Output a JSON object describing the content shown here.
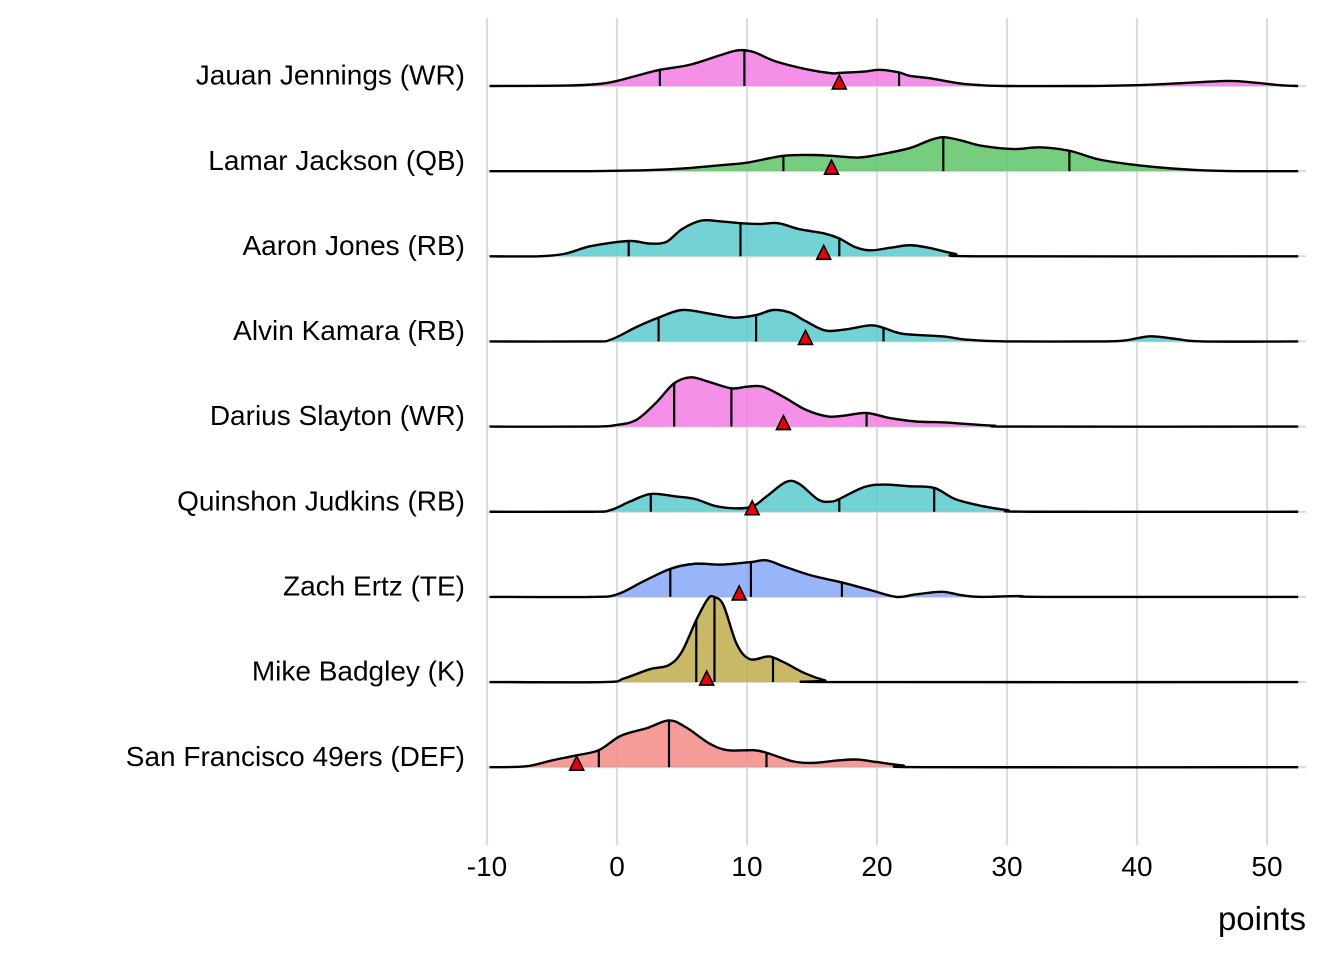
{
  "chart_data": {
    "type": "ridgeline",
    "title": "",
    "xlabel": "points",
    "ylabel": "",
    "xlim": [
      -10,
      52.5
    ],
    "x_ticks": [
      -10,
      0,
      10,
      20,
      30,
      40,
      50
    ],
    "x_tick_labels": [
      "-10",
      "0",
      "10",
      "20",
      "30",
      "40",
      "50"
    ],
    "grid": true,
    "legend": "none",
    "density_scale_note": "heights relative to tallest ridge peak (=1.0)",
    "colors": {
      "WR": "#f37de4",
      "QB": "#5ec466",
      "RB": "#5bcbcd",
      "TE": "#86a8f8",
      "K": "#bfab4e",
      "DEF": "#f48b86",
      "marker": "#e8000b",
      "outline": "#000000",
      "gridline": "#dcdcdc"
    },
    "series": [
      {
        "name": "Jauan Jennings (WR)",
        "position": "WR",
        "quantiles": [
          3.3,
          9.8,
          21.7
        ],
        "marker": 17.1,
        "density": [
          [
            -9.8,
            0
          ],
          [
            -4,
            0.005
          ],
          [
            -1.3,
            0.025
          ],
          [
            0,
            0.06
          ],
          [
            1.5,
            0.12
          ],
          [
            3.3,
            0.19
          ],
          [
            5.6,
            0.25
          ],
          [
            7.9,
            0.36
          ],
          [
            9.3,
            0.42
          ],
          [
            10.5,
            0.4
          ],
          [
            12.2,
            0.29
          ],
          [
            14.8,
            0.19
          ],
          [
            16.5,
            0.15
          ],
          [
            17.2,
            0.155
          ],
          [
            19,
            0.17
          ],
          [
            20.2,
            0.19
          ],
          [
            21.7,
            0.16
          ],
          [
            22.5,
            0.12
          ],
          [
            24.1,
            0.09
          ],
          [
            26.4,
            0.03
          ],
          [
            28,
            0.01
          ],
          [
            30,
            0.0
          ],
          [
            36,
            0.0
          ],
          [
            40,
            0.01
          ],
          [
            43,
            0.03
          ],
          [
            47,
            0.06
          ],
          [
            49,
            0.04
          ],
          [
            51,
            0.01
          ],
          [
            52.4,
            0
          ]
        ]
      },
      {
        "name": "Lamar Jackson (QB)",
        "position": "QB",
        "quantiles": [
          12.8,
          25.1,
          34.8
        ],
        "marker": 16.5,
        "density": [
          [
            -9.8,
            0
          ],
          [
            -2,
            0.0
          ],
          [
            2,
            0.01
          ],
          [
            5,
            0.03
          ],
          [
            8,
            0.07
          ],
          [
            10,
            0.1
          ],
          [
            12.8,
            0.18
          ],
          [
            15,
            0.19
          ],
          [
            16.5,
            0.18
          ],
          [
            18.5,
            0.16
          ],
          [
            20,
            0.19
          ],
          [
            22.5,
            0.27
          ],
          [
            24,
            0.36
          ],
          [
            25.1,
            0.4
          ],
          [
            26.5,
            0.36
          ],
          [
            28,
            0.3
          ],
          [
            30.5,
            0.26
          ],
          [
            32.5,
            0.28
          ],
          [
            34.8,
            0.24
          ],
          [
            37,
            0.14
          ],
          [
            39.5,
            0.08
          ],
          [
            42,
            0.04
          ],
          [
            45,
            0.01
          ],
          [
            48,
            0.0
          ],
          [
            52.4,
            0
          ]
        ]
      },
      {
        "name": "Aaron Jones (RB)",
        "position": "RB",
        "quantiles": [
          0.9,
          9.5,
          17.1
        ],
        "marker": 15.9,
        "density": [
          [
            -9.8,
            0
          ],
          [
            -6,
            0.0
          ],
          [
            -4,
            0.03
          ],
          [
            -2,
            0.12
          ],
          [
            0.9,
            0.18
          ],
          [
            2.5,
            0.15
          ],
          [
            3.8,
            0.17
          ],
          [
            5,
            0.32
          ],
          [
            6.5,
            0.42
          ],
          [
            8,
            0.41
          ],
          [
            9.5,
            0.39
          ],
          [
            11,
            0.38
          ],
          [
            12.4,
            0.39
          ],
          [
            14,
            0.32
          ],
          [
            15.9,
            0.27
          ],
          [
            17.1,
            0.21
          ],
          [
            18.3,
            0.11
          ],
          [
            19.5,
            0.07
          ],
          [
            21,
            0.1
          ],
          [
            22.5,
            0.13
          ],
          [
            24,
            0.1
          ],
          [
            26,
            0.03
          ],
          [
            28,
            0.0
          ],
          [
            52.4,
            0
          ]
        ]
      },
      {
        "name": "Alvin Kamara (RB)",
        "position": "RB",
        "quantiles": [
          3.2,
          10.7,
          20.5
        ],
        "marker": 14.5,
        "density": [
          [
            -9.8,
            0
          ],
          [
            -2,
            0.0
          ],
          [
            -0.5,
            0.02
          ],
          [
            1.5,
            0.17
          ],
          [
            3.2,
            0.28
          ],
          [
            5,
            0.37
          ],
          [
            7,
            0.33
          ],
          [
            9,
            0.28
          ],
          [
            10.7,
            0.31
          ],
          [
            12,
            0.37
          ],
          [
            13.3,
            0.34
          ],
          [
            14.5,
            0.24
          ],
          [
            16,
            0.13
          ],
          [
            17.5,
            0.14
          ],
          [
            19.5,
            0.19
          ],
          [
            20.5,
            0.16
          ],
          [
            22,
            0.09
          ],
          [
            25,
            0.06
          ],
          [
            27,
            0.02
          ],
          [
            30,
            0.0
          ],
          [
            37,
            0.0
          ],
          [
            39,
            0.01
          ],
          [
            41,
            0.06
          ],
          [
            43,
            0.03
          ],
          [
            45,
            0.0
          ],
          [
            52.4,
            0
          ]
        ]
      },
      {
        "name": "Darius Slayton (WR)",
        "position": "WR",
        "quantiles": [
          4.4,
          8.8,
          19.2
        ],
        "marker": 12.8,
        "density": [
          [
            -9.8,
            0
          ],
          [
            -2,
            0.0
          ],
          [
            0,
            0.02
          ],
          [
            1.5,
            0.08
          ],
          [
            3,
            0.28
          ],
          [
            4.4,
            0.51
          ],
          [
            5.7,
            0.58
          ],
          [
            7,
            0.53
          ],
          [
            8.8,
            0.45
          ],
          [
            10,
            0.47
          ],
          [
            11.2,
            0.47
          ],
          [
            12.8,
            0.35
          ],
          [
            14.5,
            0.2
          ],
          [
            16.2,
            0.12
          ],
          [
            17.5,
            0.13
          ],
          [
            19.2,
            0.16
          ],
          [
            21,
            0.1
          ],
          [
            23,
            0.06
          ],
          [
            25,
            0.05
          ],
          [
            27,
            0.03
          ],
          [
            29,
            0.01
          ],
          [
            31,
            0.0
          ],
          [
            52.4,
            0
          ]
        ]
      },
      {
        "name": "Quinshon Judkins (RB)",
        "position": "RB",
        "quantiles": [
          2.6,
          17.1,
          24.4
        ],
        "marker": 10.4,
        "density": [
          [
            -9.8,
            0
          ],
          [
            -2,
            0.0
          ],
          [
            -0.5,
            0.02
          ],
          [
            1,
            0.12
          ],
          [
            2.6,
            0.21
          ],
          [
            4.5,
            0.18
          ],
          [
            6,
            0.15
          ],
          [
            7.5,
            0.07
          ],
          [
            9,
            0.04
          ],
          [
            10.4,
            0.06
          ],
          [
            11.5,
            0.18
          ],
          [
            13,
            0.35
          ],
          [
            14,
            0.33
          ],
          [
            15.5,
            0.14
          ],
          [
            16.5,
            0.12
          ],
          [
            17.1,
            0.15
          ],
          [
            19,
            0.29
          ],
          [
            20.5,
            0.32
          ],
          [
            22.5,
            0.3
          ],
          [
            24.4,
            0.28
          ],
          [
            26,
            0.15
          ],
          [
            28,
            0.07
          ],
          [
            30,
            0.02
          ],
          [
            32,
            0.0
          ],
          [
            52.4,
            0
          ]
        ]
      },
      {
        "name": "Zach Ertz (TE)",
        "position": "TE",
        "quantiles": [
          4.1,
          10.3,
          17.3
        ],
        "marker": 9.4,
        "density": [
          [
            -9.8,
            0
          ],
          [
            -2,
            0.0
          ],
          [
            0,
            0.03
          ],
          [
            2,
            0.18
          ],
          [
            4.1,
            0.33
          ],
          [
            6,
            0.39
          ],
          [
            8,
            0.38
          ],
          [
            10.3,
            0.41
          ],
          [
            11.5,
            0.43
          ],
          [
            13,
            0.35
          ],
          [
            15,
            0.25
          ],
          [
            17.3,
            0.17
          ],
          [
            19.5,
            0.08
          ],
          [
            21.5,
            0.0
          ],
          [
            23,
            0.03
          ],
          [
            25,
            0.06
          ],
          [
            26.5,
            0.02
          ],
          [
            28,
            0.0
          ],
          [
            31,
            0.01
          ],
          [
            33,
            0.0
          ],
          [
            52.4,
            0
          ]
        ]
      },
      {
        "name": "Mike Badgley (K)",
        "position": "K",
        "quantiles": [
          6.1,
          7.5,
          12.0
        ],
        "marker": 6.9,
        "density": [
          [
            -9.8,
            0
          ],
          [
            -1,
            0.0
          ],
          [
            0.5,
            0.04
          ],
          [
            2.5,
            0.15
          ],
          [
            4,
            0.2
          ],
          [
            5,
            0.36
          ],
          [
            6.1,
            0.73
          ],
          [
            7,
            0.98
          ],
          [
            7.5,
            1.0
          ],
          [
            8.2,
            0.9
          ],
          [
            9.2,
            0.45
          ],
          [
            10.2,
            0.27
          ],
          [
            11.5,
            0.3
          ],
          [
            12.0,
            0.29
          ],
          [
            13,
            0.22
          ],
          [
            14.5,
            0.1
          ],
          [
            16,
            0.02
          ],
          [
            17,
            0.0
          ],
          [
            52.4,
            0
          ]
        ]
      },
      {
        "name": "San Francisco 49ers (DEF)",
        "position": "DEF",
        "quantiles": [
          -1.4,
          4.0,
          11.5
        ],
        "marker": -3.1,
        "density": [
          [
            -9.8,
            0
          ],
          [
            -7,
            0.01
          ],
          [
            -5,
            0.08
          ],
          [
            -3.1,
            0.14
          ],
          [
            -1.4,
            0.2
          ],
          [
            0.3,
            0.37
          ],
          [
            2.3,
            0.46
          ],
          [
            4.0,
            0.55
          ],
          [
            5.3,
            0.47
          ],
          [
            7.1,
            0.28
          ],
          [
            8.5,
            0.2
          ],
          [
            10.5,
            0.2
          ],
          [
            11.5,
            0.17
          ],
          [
            13.5,
            0.07
          ],
          [
            15,
            0.05
          ],
          [
            17,
            0.08
          ],
          [
            18.5,
            0.09
          ],
          [
            20,
            0.06
          ],
          [
            22,
            0.02
          ],
          [
            24,
            0.0
          ],
          [
            52.4,
            0
          ]
        ]
      }
    ]
  }
}
